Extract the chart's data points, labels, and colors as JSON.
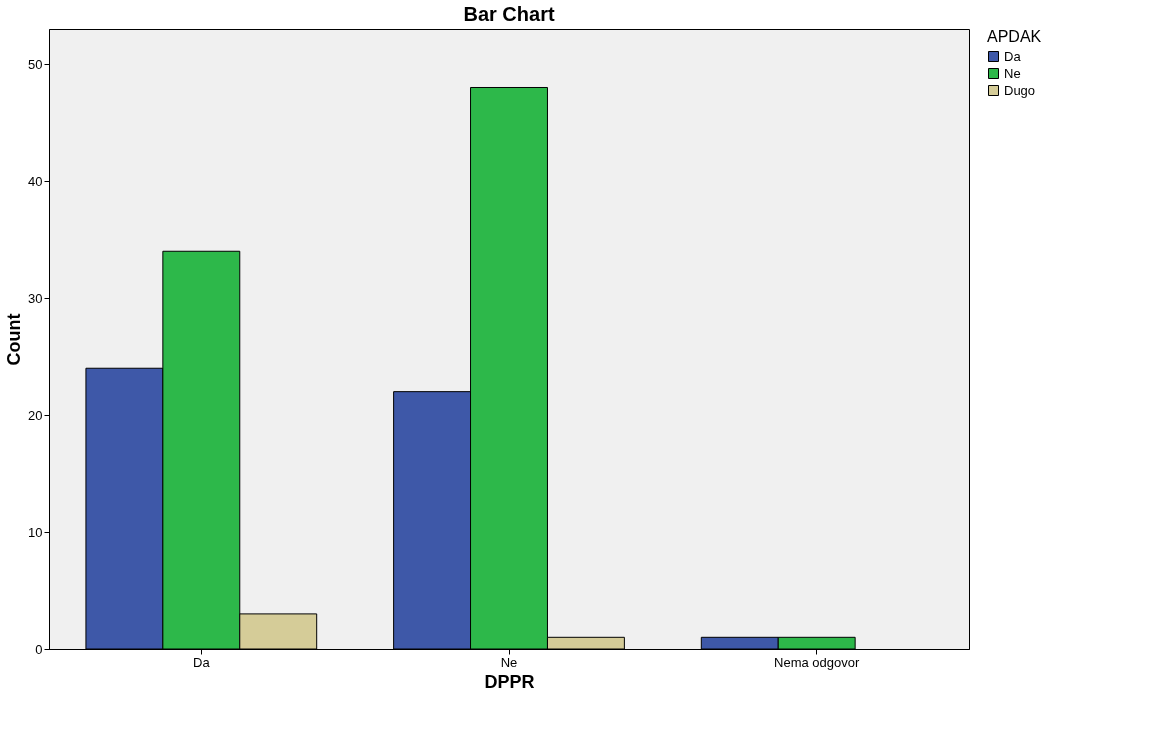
{
  "chart_data": {
    "type": "bar",
    "title": "Bar Chart",
    "xlabel": "DPPR",
    "ylabel": "Count",
    "legend_title": "APDAK",
    "categories": [
      "Da",
      "Ne",
      "Nema odgovor"
    ],
    "series": [
      {
        "name": "Da",
        "color": "#3e58a8",
        "values": [
          24,
          22,
          1
        ]
      },
      {
        "name": "Ne",
        "color": "#2db84a",
        "values": [
          34,
          48,
          1
        ]
      },
      {
        "name": "Dugo",
        "color": "#d5cc98",
        "values": [
          3,
          1,
          null
        ]
      }
    ],
    "ylim": [
      0,
      53
    ],
    "yticks": [
      0,
      10,
      20,
      30,
      40,
      50
    ],
    "grid": false,
    "legend": "top right"
  }
}
